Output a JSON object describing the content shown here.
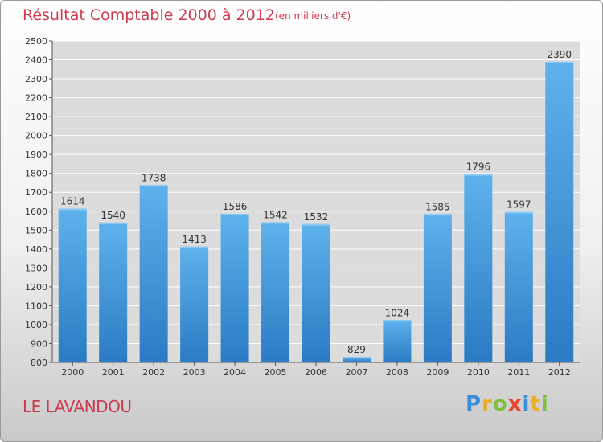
{
  "header": {
    "title": "Résultat Comptable 2000 à 2012",
    "subtitle": "(en milliers d'€)"
  },
  "footer": {
    "town": "LE LAVANDOU",
    "logo": {
      "letters": [
        "P",
        "r",
        "o",
        "x",
        "i",
        "t",
        "i"
      ],
      "colors": [
        "#3a8fd8",
        "#e8b020",
        "#7fbf3a",
        "#e8452f",
        "#3a8fd8",
        "#e8b020",
        "#7fbf3a"
      ]
    }
  },
  "chart_data": {
    "type": "bar",
    "title": "Résultat Comptable 2000 à 2012",
    "subtitle": "(en milliers d'€)",
    "categories": [
      "2000",
      "2001",
      "2002",
      "2003",
      "2004",
      "2005",
      "2006",
      "2007",
      "2008",
      "2009",
      "2010",
      "2011",
      "2012"
    ],
    "values": [
      1614,
      1540,
      1738,
      1413,
      1586,
      1542,
      1532,
      829,
      1024,
      1585,
      1796,
      1597,
      2390
    ],
    "ylim": [
      800,
      2500
    ],
    "yticks": [
      800,
      900,
      1000,
      1100,
      1200,
      1300,
      1400,
      1500,
      1600,
      1700,
      1800,
      1900,
      2000,
      2100,
      2200,
      2300,
      2400,
      2500
    ],
    "grid": true,
    "bar_color": "#4a9fe0",
    "plot_background": "#dcdcdc"
  }
}
